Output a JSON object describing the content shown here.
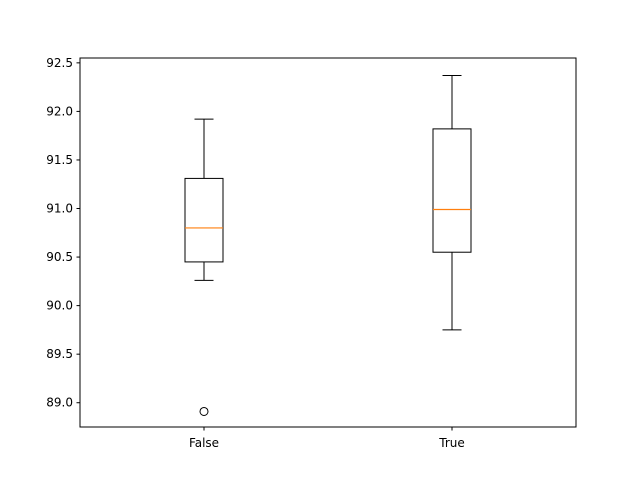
{
  "chart_data": {
    "type": "box",
    "title": "",
    "xlabel": "",
    "ylabel": "",
    "categories": [
      "False",
      "True"
    ],
    "boxes": [
      {
        "category": "False",
        "whisker_low": 90.26,
        "q1": 90.45,
        "median": 90.8,
        "q3": 91.31,
        "whisker_high": 91.92,
        "fliers": [
          88.91
        ]
      },
      {
        "category": "True",
        "whisker_low": 89.75,
        "q1": 90.55,
        "median": 90.99,
        "q3": 91.82,
        "whisker_high": 92.37,
        "fliers": []
      }
    ],
    "ylim": [
      88.75,
      92.55
    ],
    "yticks": [
      89.0,
      89.5,
      90.0,
      90.5,
      91.0,
      91.5,
      92.0,
      92.5
    ],
    "ytick_labels": [
      "89.0",
      "89.5",
      "90.0",
      "90.5",
      "91.0",
      "91.5",
      "92.0",
      "92.5"
    ],
    "grid": false,
    "colors": {
      "box": "#000000",
      "median": "#ff7f0e",
      "flier": "#000000"
    }
  }
}
